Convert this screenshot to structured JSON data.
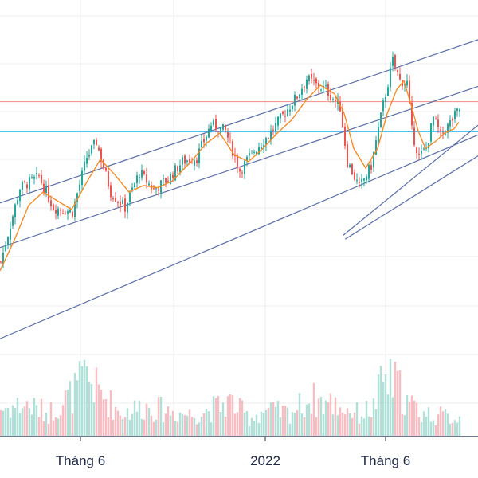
{
  "chart_data": {
    "type": "candlestick",
    "grid": true,
    "x_tick_labels": [
      "Tháng 6",
      "2022",
      "Tháng 6"
    ],
    "y_range": [
      0,
      100
    ],
    "volume_range": [
      0,
      100
    ],
    "horizontal_levels": [
      {
        "value": 76.7,
        "color": "#f28b82"
      },
      {
        "value": 69.8,
        "color": "#4fc3f7"
      }
    ],
    "trend_lines": [
      {
        "from": [
          0,
          53.5
        ],
        "to": [
          100,
          90.9
        ],
        "color": "#5b6fa6"
      },
      {
        "from": [
          0,
          43.3
        ],
        "to": [
          100,
          80.2
        ],
        "color": "#5b6fa6"
      },
      {
        "from": [
          0,
          22.4
        ],
        "to": [
          100,
          69.1
        ],
        "color": "#5b6fa6"
      },
      {
        "from": [
          71.8,
          46.1
        ],
        "to": [
          100,
          71.3
        ],
        "color": "#5b6fa6"
      },
      {
        "from": [
          72.2,
          45.2
        ],
        "to": [
          100,
          64.3
        ],
        "color": "#5b6fa6"
      }
    ],
    "price_path": [
      [
        0,
        40
      ],
      [
        4,
        57
      ],
      [
        8,
        59.5
      ],
      [
        11,
        52.5
      ],
      [
        15,
        51.5
      ],
      [
        18,
        64
      ],
      [
        20,
        67.5
      ],
      [
        23,
        56
      ],
      [
        26,
        52.5
      ],
      [
        29,
        60.5
      ],
      [
        32,
        56.5
      ],
      [
        35,
        59
      ],
      [
        38,
        63
      ],
      [
        41,
        64
      ],
      [
        44,
        71.5
      ],
      [
        47,
        70
      ],
      [
        50,
        61
      ],
      [
        53,
        65.5
      ],
      [
        56,
        69
      ],
      [
        59,
        73.5
      ],
      [
        62,
        78
      ],
      [
        64,
        82
      ],
      [
        66,
        80.5
      ],
      [
        68,
        79.5
      ],
      [
        71,
        75.5
      ],
      [
        72.5,
        63
      ],
      [
        75,
        57
      ],
      [
        77.5,
        62
      ],
      [
        80,
        76
      ],
      [
        82,
        86
      ],
      [
        83.5,
        81.5
      ],
      [
        85,
        81
      ],
      [
        86,
        70
      ],
      [
        87.5,
        64
      ],
      [
        89,
        66
      ],
      [
        90.5,
        73
      ],
      [
        92,
        69
      ],
      [
        93.5,
        71
      ],
      [
        95,
        73.5
      ],
      [
        96,
        75
      ]
    ],
    "moving_average": {
      "color": "#f28c28",
      "path": [
        [
          0,
          38
        ],
        [
          3,
          45
        ],
        [
          6,
          53
        ],
        [
          9,
          56
        ],
        [
          12,
          54
        ],
        [
          15,
          52
        ],
        [
          18,
          58
        ],
        [
          21,
          63.5
        ],
        [
          24,
          60
        ],
        [
          27,
          56
        ],
        [
          30,
          57.5
        ],
        [
          33,
          57
        ],
        [
          36,
          58.5
        ],
        [
          40,
          63
        ],
        [
          43,
          67
        ],
        [
          46,
          69.5
        ],
        [
          49,
          64.5
        ],
        [
          52,
          63
        ],
        [
          55,
          66
        ],
        [
          58,
          69.5
        ],
        [
          61,
          72.5
        ],
        [
          64,
          77
        ],
        [
          67,
          80.5
        ],
        [
          70,
          78.5
        ],
        [
          72,
          74
        ],
        [
          74,
          66
        ],
        [
          76.5,
          61.5
        ],
        [
          79,
          66
        ],
        [
          81,
          74
        ],
        [
          83,
          79.5
        ],
        [
          84.5,
          81.5
        ],
        [
          86,
          76
        ],
        [
          87.5,
          70
        ],
        [
          89,
          66
        ],
        [
          91,
          67.5
        ],
        [
          93,
          69.5
        ],
        [
          95,
          70.5
        ],
        [
          96,
          72
        ]
      ]
    },
    "volume_profile": [
      [
        0,
        26
      ],
      [
        5,
        30
      ],
      [
        10,
        22
      ],
      [
        15,
        40
      ],
      [
        18,
        58
      ],
      [
        20,
        45
      ],
      [
        25,
        22
      ],
      [
        30,
        28
      ],
      [
        35,
        24
      ],
      [
        40,
        20
      ],
      [
        45,
        27
      ],
      [
        48,
        33
      ],
      [
        52,
        17
      ],
      [
        55,
        24
      ],
      [
        60,
        22
      ],
      [
        65,
        35
      ],
      [
        70,
        30
      ],
      [
        75,
        21
      ],
      [
        78,
        27
      ],
      [
        80,
        54
      ],
      [
        83,
        49
      ],
      [
        85,
        32
      ],
      [
        88,
        22
      ],
      [
        92,
        19
      ],
      [
        96,
        17
      ]
    ],
    "colors": {
      "up": "#26a69a",
      "down": "#ef5350",
      "grid": "#ececec",
      "axis": "#1f2a44"
    }
  }
}
